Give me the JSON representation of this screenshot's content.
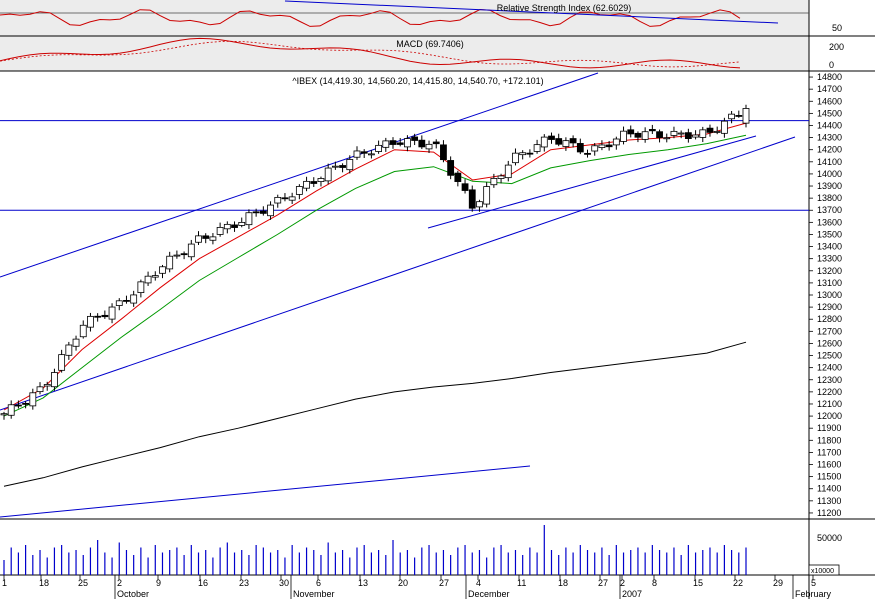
{
  "rsi_panel": {
    "title": "Relative Strength Index (62.6029)",
    "ticks": [
      "50"
    ]
  },
  "macd_panel": {
    "title": "MACD (69.7406)",
    "ticks": [
      "200",
      "0"
    ]
  },
  "price_panel": {
    "title": "^IBEX (14,419.30, 14,560.20, 14,415.80, 14,540.70, +172.101)",
    "ticks": [
      "14800",
      "14700",
      "14600",
      "14500",
      "14400",
      "14300",
      "14200",
      "14100",
      "14000",
      "13900",
      "13800",
      "13700",
      "13600",
      "13500",
      "13400",
      "13300",
      "13200",
      "13100",
      "13000",
      "12900",
      "12800",
      "12700",
      "12600",
      "12500",
      "12400",
      "12300",
      "12200",
      "12100",
      "12000",
      "11900",
      "11800",
      "11700",
      "11600",
      "11500",
      "11400",
      "11300",
      "11200"
    ]
  },
  "volume_panel": {
    "ticks": [
      "50000"
    ],
    "multiplier": "x10000"
  },
  "x_axis": {
    "days": [
      "1",
      "18",
      "25",
      "2",
      "9",
      "16",
      "23",
      "30",
      "6",
      "13",
      "20",
      "27",
      "4",
      "11",
      "18",
      "27",
      "2",
      "8",
      "15",
      "22",
      "29",
      "5"
    ],
    "months": [
      "October",
      "November",
      "December",
      "2007",
      "February"
    ]
  },
  "colors": {
    "candle_up": "#ffffff",
    "candle_down": "#000000",
    "ma_short": "#dd0000",
    "ma_mid": "#009900",
    "ma_long": "#000000",
    "trendline": "#0000cc",
    "grid_bg": "#ececec"
  },
  "chart_data": {
    "type": "candlestick",
    "title": "^IBEX (14,419.30, 14,560.20, 14,415.80, 14,540.70, +172.101)",
    "ylim": [
      11150,
      14850
    ],
    "date_range": [
      "Oct 1",
      "Jan 23, 2007"
    ],
    "last_bar": {
      "open": 14419.3,
      "high": 14560.2,
      "low": 14415.8,
      "close": 14540.7,
      "change": 172.101
    },
    "closes_weekly_approx": [
      {
        "date": "Oct 1",
        "close": 12020
      },
      {
        "date": "Oct 18",
        "close": 12230
      },
      {
        "date": "Oct 25",
        "close": 12750
      },
      {
        "date": "Nov 2",
        "close": 12930
      },
      {
        "date": "Nov 9",
        "close": 13230
      },
      {
        "date": "Nov 16",
        "close": 13460
      },
      {
        "date": "Nov 23",
        "close": 13600
      },
      {
        "date": "Nov 30",
        "close": 13770
      },
      {
        "date": "Dec 6",
        "close": 13960
      },
      {
        "date": "Dec 13",
        "close": 14150
      },
      {
        "date": "Dec 20",
        "close": 14270
      },
      {
        "date": "Dec 27",
        "close": 14250
      },
      {
        "date": "Jan 4",
        "close": 13730
      },
      {
        "date": "Jan 11",
        "close": 14120
      },
      {
        "date": "Jan 18",
        "close": 14300
      },
      {
        "date": "Jan 27",
        "close": 14180
      },
      {
        "date": "Feb 2",
        "close": 14340
      },
      {
        "date": "Feb 8",
        "close": 14320
      },
      {
        "date": "Feb 15",
        "close": 14330
      },
      {
        "date": "Feb 22",
        "close": 14540
      }
    ],
    "series": [
      {
        "name": "MA short",
        "values": [
          12050,
          12230,
          12550,
          12800,
          13060,
          13300,
          13480,
          13660,
          13860,
          14040,
          14200,
          14180,
          13950,
          14000,
          14200,
          14240,
          14280,
          14300,
          14330,
          14420
        ]
      },
      {
        "name": "MA mid",
        "values": [
          12000,
          12150,
          12400,
          12650,
          12880,
          13120,
          13310,
          13500,
          13700,
          13880,
          14020,
          14060,
          13940,
          13920,
          14050,
          14110,
          14160,
          14200,
          14250,
          14320
        ]
      },
      {
        "name": "MA long",
        "values": [
          11420,
          11490,
          11580,
          11660,
          11740,
          11830,
          11900,
          11980,
          12060,
          12140,
          12200,
          12240,
          12270,
          12310,
          12360,
          12400,
          12440,
          12480,
          12520,
          12610
        ]
      }
    ],
    "volume_relative": [
      0.3,
      0.55,
      0.45,
      0.6,
      0.4,
      0.5,
      0.35,
      0.55,
      0.6,
      0.45,
      0.5,
      0.4,
      0.55,
      0.7,
      0.45,
      0.35,
      0.65,
      0.5,
      0.4,
      0.55,
      0.35,
      0.6,
      0.45,
      0.5,
      0.55,
      0.4,
      0.6,
      0.45,
      0.5,
      0.35,
      0.55,
      0.65,
      0.45,
      0.5,
      0.4,
      0.6,
      0.55,
      0.45,
      0.5,
      0.35,
      0.6,
      0.45,
      0.55,
      0.5,
      0.4,
      0.65,
      0.45,
      0.5,
      0.35,
      0.55,
      0.6,
      0.45,
      0.5,
      0.4,
      0.7,
      0.45,
      0.5,
      0.35,
      0.55,
      0.6,
      0.45,
      0.5,
      0.4,
      0.55,
      0.6,
      0.45,
      0.5,
      0.35,
      0.55,
      0.6,
      0.45,
      0.5,
      0.4,
      0.55,
      0.45,
      1.0,
      0.5,
      0.4,
      0.55,
      0.45,
      0.6,
      0.5,
      0.45,
      0.55,
      0.4,
      0.6,
      0.45,
      0.5,
      0.55,
      0.45,
      0.6,
      0.5,
      0.45,
      0.55,
      0.4,
      0.6,
      0.45,
      0.5,
      0.55,
      0.45,
      0.6,
      0.5,
      0.45,
      0.55
    ]
  }
}
